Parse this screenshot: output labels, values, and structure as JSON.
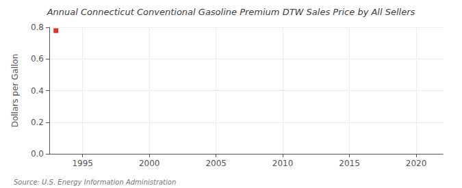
{
  "chart_data": {
    "type": "scatter",
    "title": "Annual Connecticut Conventional Gasoline Premium DTW Sales Price by All Sellers",
    "ylabel": "Dollars per Gallon",
    "annotations": [
      "Source: U.S. Energy Information Administration"
    ],
    "x": [
      1993
    ],
    "values": [
      0.779
    ],
    "color": "#cc0000",
    "marker": "square",
    "xlim": [
      1992.5,
      2022
    ],
    "xticks": [
      1995,
      2000,
      2005,
      2010,
      2015,
      2020
    ],
    "ylim": [
      0.0,
      0.8
    ],
    "yticks": [
      {
        "value": 0.0,
        "label": "0.0"
      },
      0.2,
      0.4,
      0.6,
      0.8
    ],
    "grid": true
  }
}
